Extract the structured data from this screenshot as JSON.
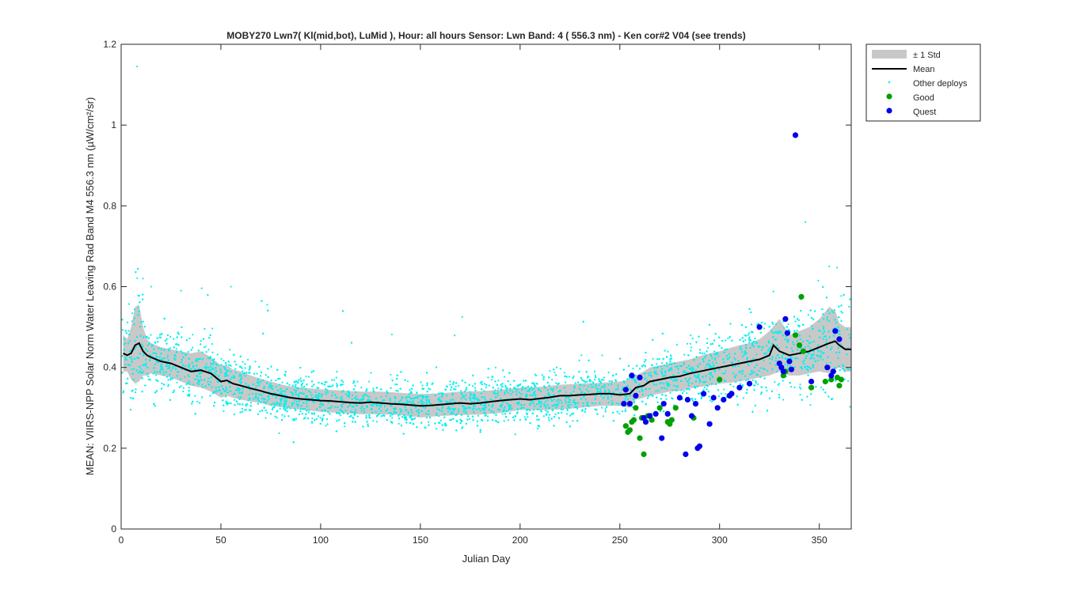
{
  "chart_data": {
    "type": "scatter",
    "title": "MOBY270   Lwn7( Kl(mid,bot), LuMid ),   Hour: all hours  Sensor: Lwn Band: 4 ( 556.3 nm)  - Ken cor#2 V04 (see trends)",
    "xlabel": "Julian Day",
    "ylabel": "MEAN: VIIRS-NPP Solar Norm Water Leaving Rad Band M4 556.3 nm (µW/cm²/sr)",
    "xlim": [
      0,
      366
    ],
    "ylim": [
      0,
      1.2
    ],
    "x_ticks": [
      "0",
      "50",
      "100",
      "150",
      "200",
      "250",
      "300",
      "350"
    ],
    "y_ticks": [
      "0",
      "0.2",
      "0.4",
      "0.6",
      "0.8",
      "1",
      "1.2"
    ],
    "grid": false,
    "legend_position": "outside-top-right",
    "legend": [
      {
        "label": "± 1 Std",
        "kind": "band"
      },
      {
        "label": "Mean",
        "kind": "line"
      },
      {
        "label": "Other deploys",
        "kind": "dot"
      },
      {
        "label": "Good",
        "kind": "marker"
      },
      {
        "label": "Quest",
        "kind": "marker"
      }
    ],
    "colors": {
      "band": "#c8c8c8",
      "mean": "#000000",
      "other": "#00f0f0",
      "good": "#00a000",
      "quest": "#0000ee"
    },
    "mean_series": {
      "name": "Mean",
      "x": [
        1,
        3,
        5,
        7,
        9,
        11,
        13,
        15,
        20,
        25,
        30,
        35,
        40,
        45,
        50,
        53,
        56,
        60,
        65,
        70,
        75,
        80,
        85,
        90,
        95,
        100,
        105,
        110,
        115,
        120,
        125,
        130,
        135,
        140,
        145,
        150,
        155,
        160,
        165,
        170,
        175,
        180,
        185,
        190,
        195,
        200,
        205,
        210,
        215,
        220,
        225,
        230,
        235,
        240,
        245,
        250,
        255,
        258,
        262,
        265,
        270,
        275,
        280,
        285,
        290,
        295,
        300,
        305,
        310,
        315,
        320,
        325,
        327,
        330,
        335,
        340,
        345,
        350,
        355,
        358,
        360,
        363,
        366
      ],
      "y": [
        0.435,
        0.43,
        0.435,
        0.455,
        0.46,
        0.44,
        0.43,
        0.425,
        0.415,
        0.41,
        0.4,
        0.39,
        0.393,
        0.385,
        0.365,
        0.368,
        0.36,
        0.355,
        0.348,
        0.342,
        0.335,
        0.33,
        0.325,
        0.322,
        0.32,
        0.318,
        0.317,
        0.315,
        0.313,
        0.312,
        0.314,
        0.312,
        0.31,
        0.309,
        0.307,
        0.305,
        0.306,
        0.308,
        0.31,
        0.312,
        0.31,
        0.312,
        0.315,
        0.318,
        0.32,
        0.322,
        0.32,
        0.323,
        0.326,
        0.33,
        0.33,
        0.332,
        0.333,
        0.335,
        0.335,
        0.332,
        0.335,
        0.35,
        0.355,
        0.365,
        0.37,
        0.375,
        0.378,
        0.385,
        0.39,
        0.395,
        0.4,
        0.405,
        0.41,
        0.415,
        0.42,
        0.43,
        0.455,
        0.44,
        0.43,
        0.435,
        0.44,
        0.45,
        0.46,
        0.465,
        0.455,
        0.445,
        0.445
      ]
    },
    "std_band": {
      "name": "± 1 Std",
      "x": [
        1,
        3,
        5,
        7,
        9,
        11,
        13,
        15,
        20,
        25,
        30,
        35,
        40,
        45,
        50,
        53,
        56,
        60,
        65,
        70,
        75,
        80,
        85,
        90,
        95,
        100,
        110,
        120,
        130,
        140,
        150,
        160,
        170,
        180,
        190,
        200,
        210,
        220,
        230,
        240,
        250,
        255,
        258,
        262,
        265,
        270,
        275,
        280,
        285,
        290,
        295,
        300,
        305,
        310,
        315,
        320,
        325,
        330,
        335,
        340,
        345,
        350,
        355,
        358,
        360,
        363,
        366
      ],
      "upper": [
        0.48,
        0.47,
        0.5,
        0.55,
        0.555,
        0.5,
        0.47,
        0.46,
        0.45,
        0.445,
        0.44,
        0.435,
        0.44,
        0.425,
        0.405,
        0.405,
        0.395,
        0.39,
        0.38,
        0.372,
        0.365,
        0.358,
        0.353,
        0.35,
        0.348,
        0.346,
        0.343,
        0.34,
        0.34,
        0.337,
        0.334,
        0.336,
        0.34,
        0.341,
        0.345,
        0.35,
        0.352,
        0.357,
        0.36,
        0.362,
        0.365,
        0.37,
        0.38,
        0.39,
        0.4,
        0.405,
        0.41,
        0.415,
        0.42,
        0.428,
        0.435,
        0.44,
        0.448,
        0.455,
        0.46,
        0.47,
        0.49,
        0.52,
        0.48,
        0.49,
        0.5,
        0.52,
        0.55,
        0.54,
        0.51,
        0.5,
        0.5
      ],
      "lower": [
        0.39,
        0.39,
        0.37,
        0.36,
        0.365,
        0.38,
        0.38,
        0.385,
        0.38,
        0.375,
        0.365,
        0.355,
        0.35,
        0.34,
        0.325,
        0.33,
        0.325,
        0.32,
        0.316,
        0.312,
        0.305,
        0.302,
        0.298,
        0.295,
        0.293,
        0.29,
        0.287,
        0.284,
        0.284,
        0.282,
        0.276,
        0.28,
        0.282,
        0.283,
        0.287,
        0.295,
        0.294,
        0.296,
        0.3,
        0.305,
        0.305,
        0.3,
        0.32,
        0.325,
        0.33,
        0.335,
        0.34,
        0.342,
        0.348,
        0.352,
        0.355,
        0.36,
        0.362,
        0.365,
        0.37,
        0.375,
        0.38,
        0.39,
        0.38,
        0.38,
        0.385,
        0.39,
        0.385,
        0.395,
        0.4,
        0.39,
        0.39
      ]
    },
    "other_deploys": {
      "name": "Other deploys",
      "note": "dense cloud of thousands of points following the mean; drawn procedurally from the mean and std envelope",
      "notable_points": [
        [
          8,
          1.145
        ],
        [
          11,
          0.62
        ],
        [
          15,
          0.6
        ],
        [
          30,
          0.59
        ],
        [
          55,
          0.6
        ],
        [
          343,
          0.76
        ],
        [
          355,
          0.65
        ]
      ]
    },
    "good_points": {
      "name": "Good",
      "x": [
        253,
        254,
        255,
        256,
        257,
        258,
        260,
        261,
        262,
        264,
        266,
        270,
        274,
        275,
        276,
        278,
        287,
        300,
        332,
        333,
        338,
        340,
        341,
        342,
        346,
        353,
        356,
        359,
        360,
        361
      ],
      "y": [
        0.255,
        0.24,
        0.245,
        0.265,
        0.27,
        0.3,
        0.225,
        0.275,
        0.185,
        0.28,
        0.27,
        0.3,
        0.265,
        0.26,
        0.27,
        0.3,
        0.275,
        0.37,
        0.38,
        0.39,
        0.48,
        0.455,
        0.575,
        0.44,
        0.35,
        0.365,
        0.37,
        0.375,
        0.355,
        0.37
      ]
    },
    "quest_points": {
      "name": "Quest",
      "x": [
        252,
        253,
        255,
        256,
        258,
        260,
        262,
        263,
        265,
        268,
        271,
        272,
        274,
        280,
        283,
        284,
        286,
        288,
        289,
        290,
        292,
        295,
        297,
        299,
        302,
        305,
        306,
        310,
        315,
        320,
        330,
        331,
        332,
        333,
        334,
        335,
        336,
        338,
        346,
        354,
        356,
        357,
        358,
        360
      ],
      "y": [
        0.31,
        0.345,
        0.31,
        0.38,
        0.33,
        0.375,
        0.275,
        0.265,
        0.28,
        0.285,
        0.225,
        0.31,
        0.285,
        0.325,
        0.185,
        0.32,
        0.28,
        0.31,
        0.2,
        0.205,
        0.335,
        0.26,
        0.325,
        0.3,
        0.32,
        0.33,
        0.335,
        0.35,
        0.36,
        0.5,
        0.41,
        0.4,
        0.39,
        0.52,
        0.485,
        0.415,
        0.395,
        0.975,
        0.365,
        0.4,
        0.38,
        0.39,
        0.49,
        0.47
      ]
    }
  }
}
